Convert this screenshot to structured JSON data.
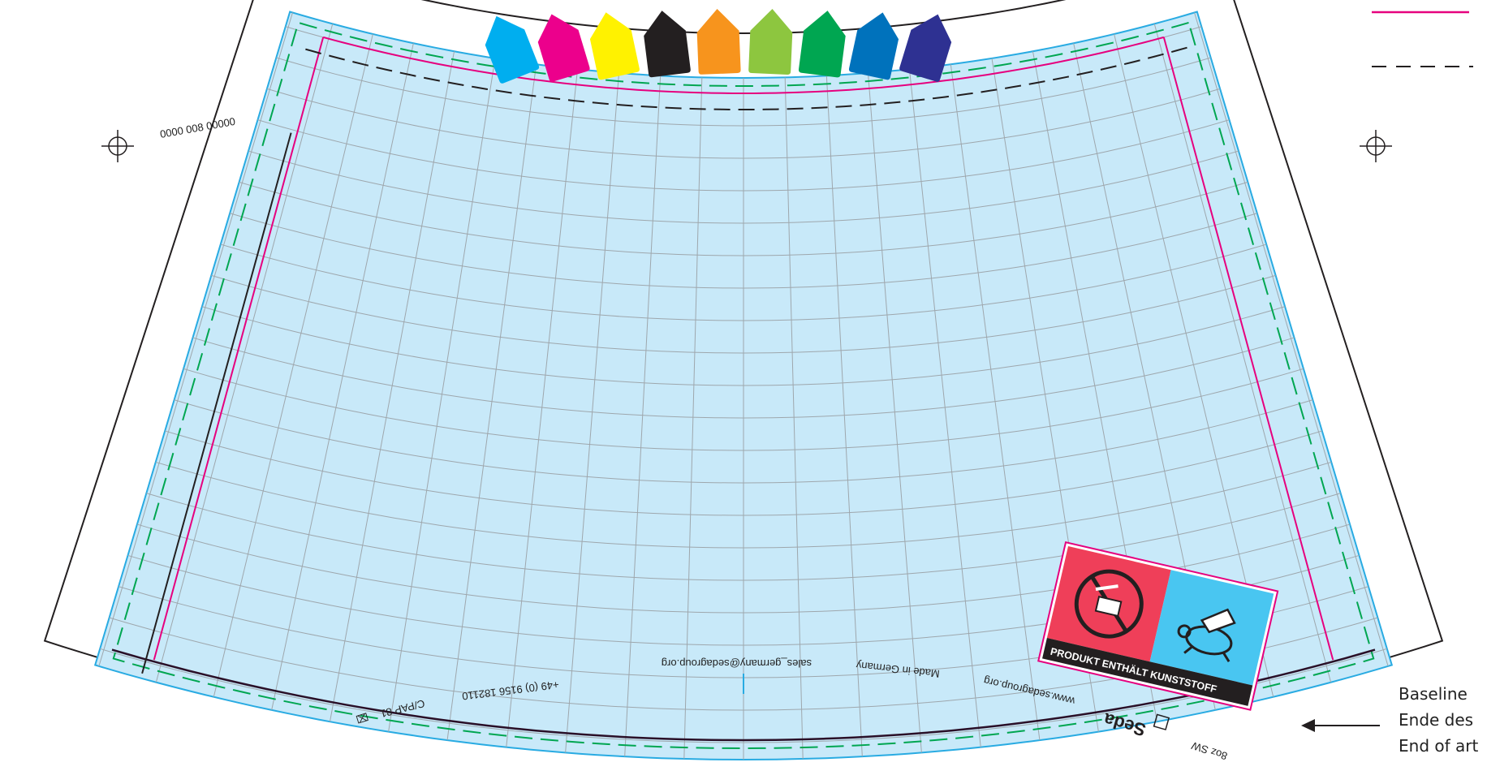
{
  "article_code": "0000 008 00000",
  "imprint": {
    "material": "C/PAP 81",
    "phone": "+49 (0) 9156 182110",
    "email": "sales_germany@sedagroup.org",
    "made_in": "Made in Germany",
    "website": "www.sedagroup.org",
    "brand": "Seda",
    "size": "8oz SW"
  },
  "badge": {
    "text": "PRODUKT ENTHÄLT KUNSTSTOFF",
    "left_color": "#ef3f59",
    "right_color": "#49c6f1"
  },
  "annotation": {
    "line1": "Baseline",
    "line2": "Ende des",
    "line3": "End of art"
  },
  "color_tabs": [
    "#00aeef",
    "#ec008c",
    "#fff200",
    "#231f20",
    "#f7941d",
    "#8dc63f",
    "#00a651",
    "#0072bc",
    "#2e3192"
  ],
  "colors": {
    "artwork_fill": "#c8e9f9",
    "bleed_line": "#29abe2",
    "magenta_line": "#e6007e",
    "green_dash": "#00a651",
    "black_dash": "#231f20",
    "grid": "#9ea7ad"
  }
}
